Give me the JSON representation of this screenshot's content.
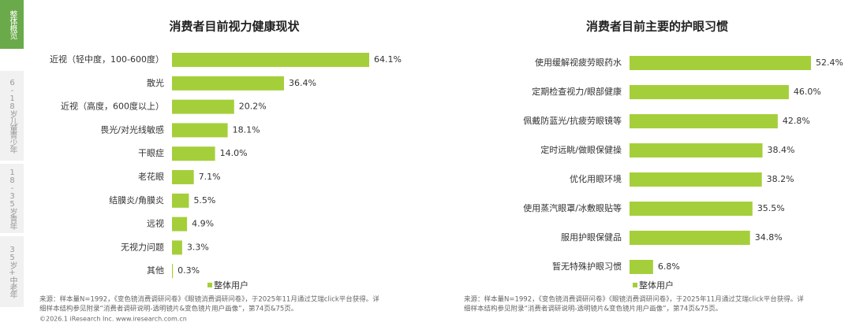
{
  "sidebar": {
    "tabs": [
      "整体概览",
      "6-18岁儿童青少年",
      "18-35岁青年",
      "35岁+中老年"
    ]
  },
  "chart_data": [
    {
      "type": "bar",
      "orientation": "horizontal",
      "title": "消费者目前视力健康现状",
      "categories": [
        "近视（轻中度，100-600度）",
        "散光",
        "近视（高度，600度以上）",
        "畏光/对光线敏感",
        "干眼症",
        "老花眼",
        "结膜炎/角膜炎",
        "远视",
        "无视力问题",
        "其他"
      ],
      "series": [
        {
          "name": "整体用户",
          "color": "#a5cf3a",
          "values": [
            64.1,
            36.4,
            20.2,
            18.1,
            14.0,
            7.1,
            5.5,
            4.9,
            3.3,
            0.3
          ],
          "value_labels": [
            "64.1%",
            "36.4%",
            "20.2%",
            "18.1%",
            "14.0%",
            "7.1%",
            "5.5%",
            "4.9%",
            "3.3%",
            "0.3%"
          ]
        }
      ],
      "note": [
        "来源：样本量N=1992，《变色镜消费调研问卷》《眼镜消费调研问卷》，于2025年11月通过艾瑞click平台获得。详",
        "细样本结构参见附录“消费者调研说明-透明镜片&变色镜片用户画像”，第74页&75页。"
      ]
    },
    {
      "type": "bar",
      "orientation": "horizontal",
      "title": "消费者目前主要的护眼习惯",
      "categories": [
        "使用缓解视疲劳眼药水",
        "定期检查视力/眼部健康",
        "佩戴防蓝光/抗疲劳眼镜等",
        "定时远眺/做眼保健操",
        "优化用眼环境",
        "使用蒸汽眼罩/冰敷眼贴等",
        "服用护眼保健品",
        "暂无特殊护眼习惯"
      ],
      "series": [
        {
          "name": "整体用户",
          "color": "#a5cf3a",
          "values": [
            52.4,
            46.0,
            42.8,
            38.4,
            38.2,
            35.5,
            34.8,
            6.8
          ],
          "value_labels": [
            "52.4%",
            "46.0%",
            "42.8%",
            "38.4%",
            "38.2%",
            "35.5%",
            "34.8%",
            "6.8%"
          ]
        }
      ],
      "note": [
        "来源：样本量N=1992，《变色镜消费调研问卷》《眼镜消费调研问卷》，于2025年11月通过艾瑞click平台获得。详",
        "细样本结构参见附录“消费者调研说明-透明镜片&变色镜片用户画像”，第74页&75页。"
      ]
    }
  ],
  "copyright": "©2026.1 iResearch Inc. www.iresearch.com.cn"
}
